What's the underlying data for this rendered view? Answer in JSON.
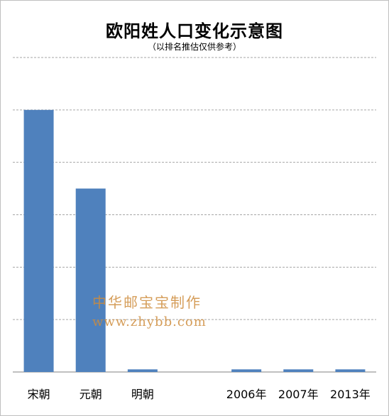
{
  "chart_data": {
    "type": "bar",
    "title": "欧阳姓人口变化示意图",
    "subtitle": "（以排名推估仅供参考）",
    "categories": [
      "宋朝",
      "元朝",
      "明朝",
      "",
      "2006年",
      "2007年",
      "2013年"
    ],
    "values": [
      100,
      70,
      1,
      null,
      1,
      1,
      1
    ],
    "ylim": [
      0,
      120
    ],
    "grid": true,
    "legend": "none",
    "colors": {
      "bar": "#4f81bd",
      "grid": "#a6a6a6",
      "axis": "#808080"
    }
  },
  "watermark": {
    "line1": "中华邮宝宝制作",
    "line2": "www.zhybb.com"
  }
}
